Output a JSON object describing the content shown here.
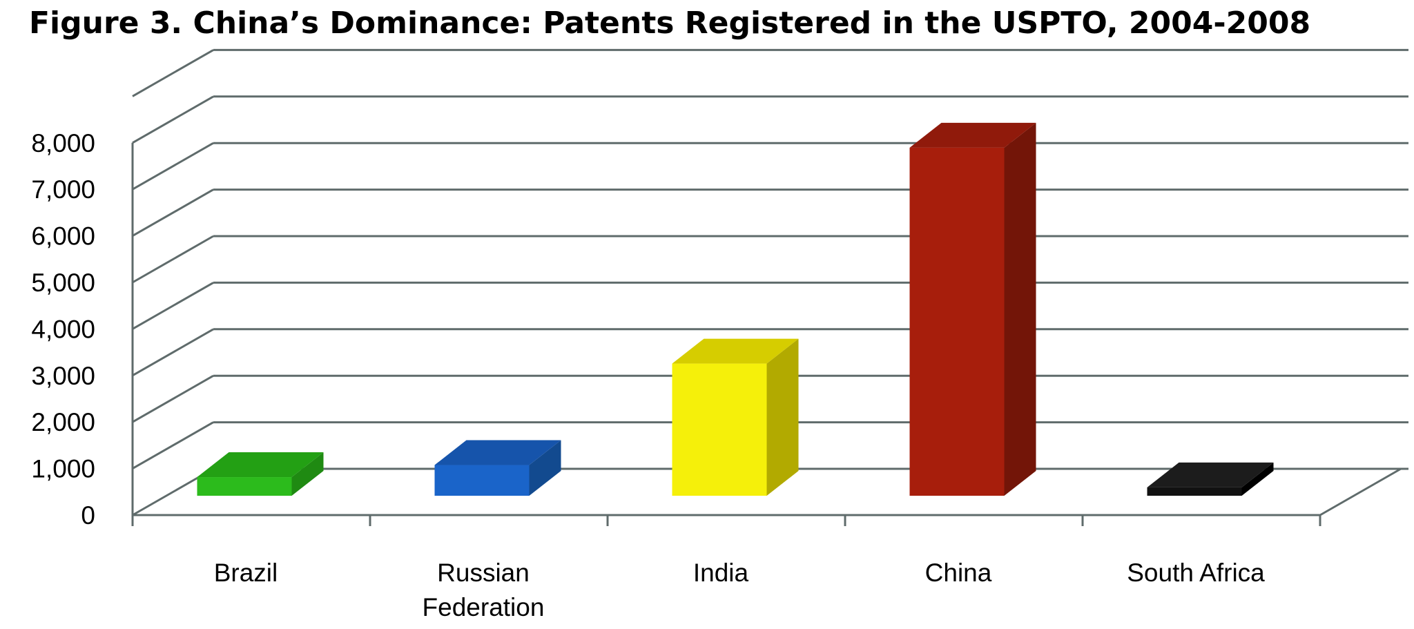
{
  "chart_data": {
    "type": "bar",
    "title": "Figure 3. China’s Dominance: Patents Registered in the USPTO, 2004-2008",
    "categories": [
      {
        "lines": [
          "Brazil"
        ]
      },
      {
        "lines": [
          "Russian",
          "Federation"
        ]
      },
      {
        "lines": [
          "India"
        ]
      },
      {
        "lines": [
          "China"
        ]
      },
      {
        "lines": [
          "South Africa"
        ]
      }
    ],
    "values": [
      400,
      660,
      2840,
      7480,
      180
    ],
    "bar_colors": [
      {
        "front": "#2cbb1c",
        "top": "#23a014",
        "side": "#1f8a12"
      },
      {
        "front": "#1a64c9",
        "top": "#1654ab",
        "side": "#124a8f"
      },
      {
        "front": "#f5f00a",
        "top": "#d6cd00",
        "side": "#b2aa00"
      },
      {
        "front": "#a71e0c",
        "top": "#901a0b",
        "side": "#731508"
      },
      {
        "front": "#111111",
        "top": "#1c1c1c",
        "side": "#000000"
      }
    ],
    "yticks": [
      "0",
      "1,000",
      "2,000",
      "3,000",
      "4,000",
      "5,000",
      "6,000",
      "7,000",
      "8,000"
    ],
    "ylim": [
      0,
      8000
    ],
    "xlabel": "",
    "ylabel": "",
    "grid": true,
    "three_d": true,
    "gridline_color": "#5f6b6b"
  }
}
